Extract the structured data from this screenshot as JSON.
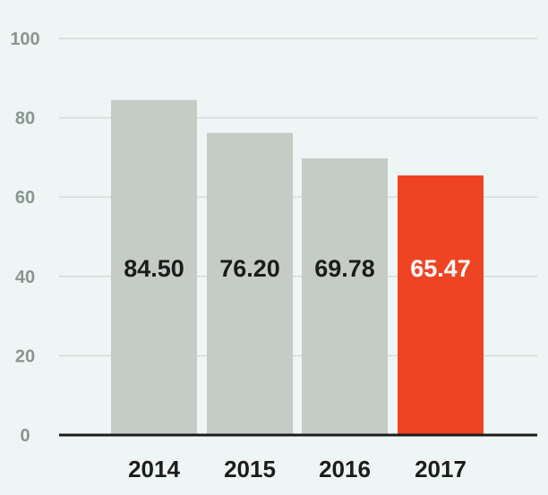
{
  "chart_data": {
    "type": "bar",
    "categories": [
      "2014",
      "2015",
      "2016",
      "2017"
    ],
    "values": [
      84.5,
      76.2,
      69.78,
      65.47
    ],
    "value_labels": [
      "84.50",
      "76.20",
      "69.78",
      "65.47"
    ],
    "highlight_index": 3,
    "title": "",
    "xlabel": "",
    "ylabel": "",
    "ylim": [
      0,
      100
    ],
    "yticks": [
      0,
      20,
      40,
      60,
      80,
      100
    ],
    "ytick_labels": [
      "0",
      "20",
      "40",
      "60",
      "80",
      "100"
    ],
    "grid": true,
    "colors": {
      "background": "#eef6f5",
      "bar": "#c5ccc6",
      "bar_highlight": "#ef4423",
      "grid": "#d3dcd9",
      "axis": "#1c1c1c",
      "label_dark": "#1c1c1c",
      "label_light": "#ffffff",
      "ytick": "#8a9490"
    }
  }
}
